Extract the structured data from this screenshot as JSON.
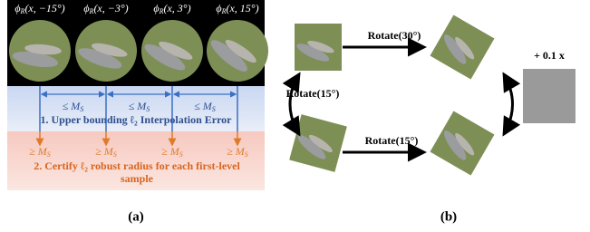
{
  "panel_a": {
    "image_labels": [
      {
        "func": "ϕ",
        "sub": "R",
        "arg": "(x, −15°)"
      },
      {
        "func": "ϕ",
        "sub": "R",
        "arg": "(x, −3°)"
      },
      {
        "func": "ϕ",
        "sub": "R",
        "arg": "(x, 3°)"
      },
      {
        "func": "ϕ",
        "sub": "R",
        "arg": "(x, 15°)"
      }
    ],
    "upper_bound_labels": [
      {
        "rel": "≤",
        "sym": "M",
        "sub": "S"
      },
      {
        "rel": "≤",
        "sym": "M",
        "sub": "S"
      },
      {
        "rel": "≤",
        "sym": "M",
        "sub": "S"
      }
    ],
    "step1": "1. Upper bounding ℓ₂ Interpolation Error",
    "lower_bound_labels": [
      {
        "rel": "≥",
        "sym": "M",
        "sub": "S"
      },
      {
        "rel": "≥",
        "sym": "M",
        "sub": "S"
      },
      {
        "rel": "≥",
        "sym": "M",
        "sub": "S"
      },
      {
        "rel": "≥",
        "sym": "M",
        "sub": "S"
      }
    ],
    "step2": "2. Certify ℓ₂ robust radius for each first-level sample",
    "caption": "(a)"
  },
  "panel_b": {
    "top_arrow": "Rotate(30°)",
    "left_arrow": "Rotate(15°)",
    "bottom_arrow": "Rotate(15°)",
    "noise_label": "+ 0.1 x",
    "caption": "(b)"
  }
}
